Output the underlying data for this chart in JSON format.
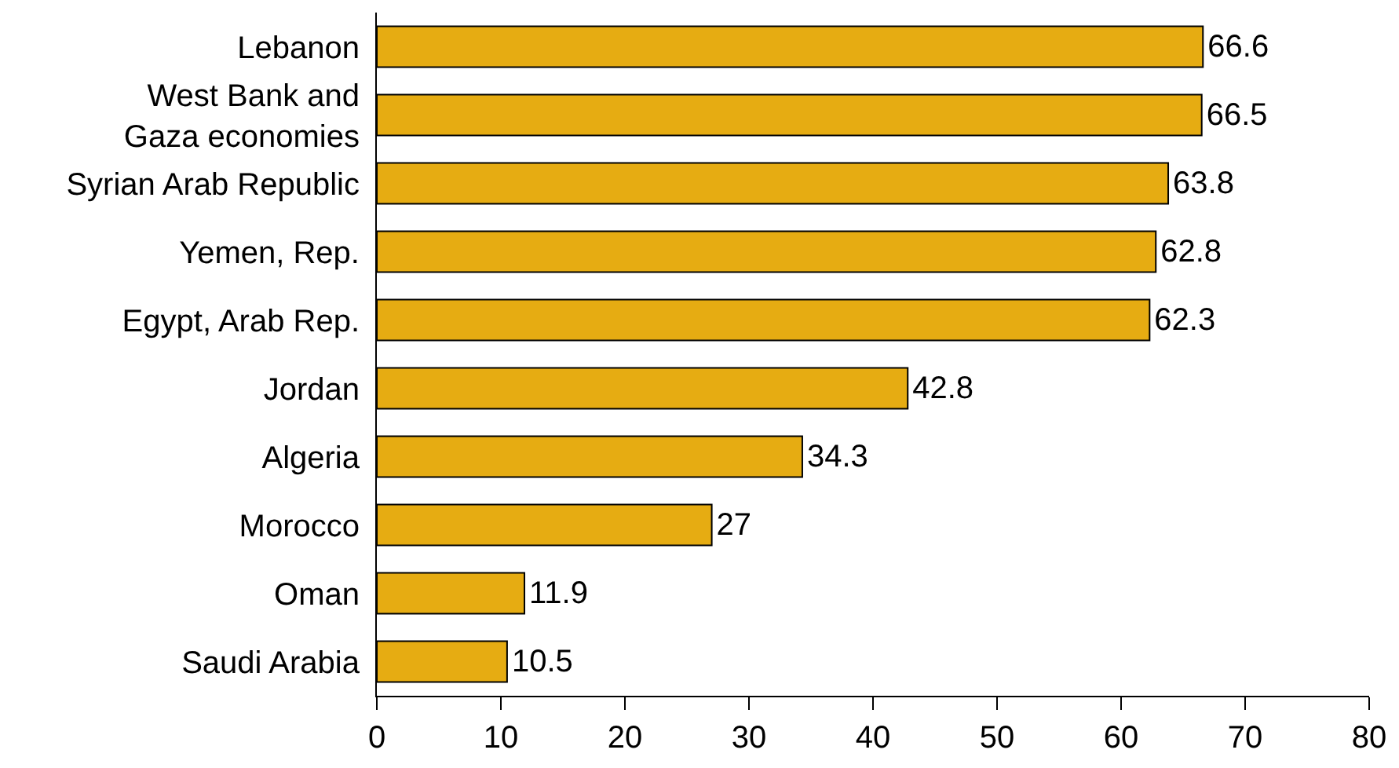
{
  "chart_data": {
    "type": "bar",
    "orientation": "horizontal",
    "categories": [
      "Lebanon",
      "West Bank and\nGaza economies",
      "Syrian Arab Republic",
      "Yemen, Rep.",
      "Egypt, Arab Rep.",
      "Jordan",
      "Algeria",
      "Morocco",
      "Oman",
      "Saudi Arabia"
    ],
    "values": [
      66.6,
      66.5,
      63.8,
      62.8,
      62.3,
      42.8,
      34.3,
      27,
      11.9,
      10.5
    ],
    "color": "#e6ac12",
    "xlim": [
      0,
      80
    ],
    "xticks": [
      0,
      10,
      20,
      30,
      40,
      50,
      60,
      70,
      80
    ],
    "data_labels": true
  }
}
